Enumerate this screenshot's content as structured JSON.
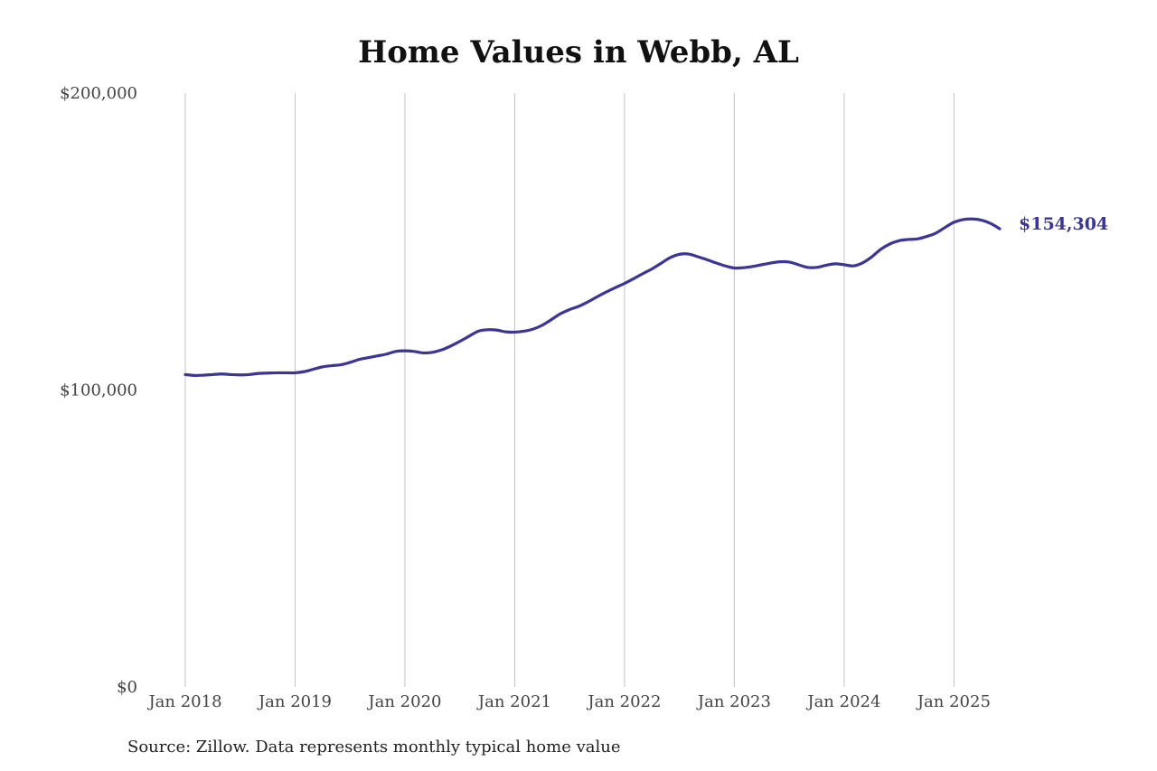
{
  "colors": {
    "line": "#3a3597",
    "grid": "#c2c2c2",
    "text": "#444444"
  },
  "chart_data": {
    "type": "line",
    "title": "Home Values in Webb, AL",
    "xlabel": "",
    "ylabel": "",
    "ylim": [
      0,
      200000
    ],
    "xlim": [
      "2018-01",
      "2025-06"
    ],
    "grid": {
      "vertical": true,
      "horizontal": false
    },
    "y_ticks": [
      {
        "value": 0,
        "label": "$0"
      },
      {
        "value": 100000,
        "label": "$100,000"
      },
      {
        "value": 200000,
        "label": "$200,000"
      }
    ],
    "x_ticks": [
      {
        "value": "2018-01",
        "label": "Jan 2018"
      },
      {
        "value": "2019-01",
        "label": "Jan 2019"
      },
      {
        "value": "2020-01",
        "label": "Jan 2020"
      },
      {
        "value": "2021-01",
        "label": "Jan 2021"
      },
      {
        "value": "2022-01",
        "label": "Jan 2022"
      },
      {
        "value": "2023-01",
        "label": "Jan 2023"
      },
      {
        "value": "2024-01",
        "label": "Jan 2024"
      },
      {
        "value": "2025-01",
        "label": "Jan 2025"
      }
    ],
    "series": [
      {
        "x": [
          "2018-01",
          "2018-02",
          "2018-03",
          "2018-04",
          "2018-05",
          "2018-06",
          "2018-07",
          "2018-08",
          "2018-09",
          "2018-10",
          "2018-11",
          "2018-12",
          "2019-01",
          "2019-02",
          "2019-03",
          "2019-04",
          "2019-05",
          "2019-06",
          "2019-07",
          "2019-08",
          "2019-09",
          "2019-10",
          "2019-11",
          "2019-12",
          "2020-01",
          "2020-02",
          "2020-03",
          "2020-04",
          "2020-05",
          "2020-06",
          "2020-07",
          "2020-08",
          "2020-09",
          "2020-10",
          "2020-11",
          "2020-12",
          "2021-01",
          "2021-02",
          "2021-03",
          "2021-04",
          "2021-05",
          "2021-06",
          "2021-07",
          "2021-08",
          "2021-09",
          "2021-10",
          "2021-11",
          "2021-12",
          "2022-01",
          "2022-02",
          "2022-03",
          "2022-04",
          "2022-05",
          "2022-06",
          "2022-07",
          "2022-08",
          "2022-09",
          "2022-10",
          "2022-11",
          "2022-12",
          "2023-01",
          "2023-02",
          "2023-03",
          "2023-04",
          "2023-05",
          "2023-06",
          "2023-07",
          "2023-08",
          "2023-09",
          "2023-10",
          "2023-11",
          "2023-12",
          "2024-01",
          "2024-02",
          "2024-03",
          "2024-04",
          "2024-05",
          "2024-06",
          "2024-07",
          "2024-08",
          "2024-09",
          "2024-10",
          "2024-11",
          "2024-12",
          "2025-01",
          "2025-02",
          "2025-03",
          "2025-04",
          "2025-05",
          "2025-06"
        ],
        "values": [
          105200,
          104900,
          105000,
          105200,
          105400,
          105200,
          105100,
          105200,
          105600,
          105700,
          105800,
          105800,
          105800,
          106200,
          107000,
          107800,
          108200,
          108500,
          109300,
          110300,
          110900,
          111500,
          112100,
          113000,
          113200,
          113000,
          112500,
          112700,
          113500,
          114800,
          116400,
          118100,
          119800,
          120300,
          120200,
          119600,
          119500,
          119800,
          120500,
          121800,
          123700,
          125700,
          127100,
          128200,
          129700,
          131400,
          133000,
          134500,
          135900,
          137500,
          139200,
          140800,
          142700,
          144600,
          145700,
          145800,
          144900,
          143900,
          142800,
          141800,
          141100,
          141200,
          141600,
          142200,
          142800,
          143200,
          143100,
          142200,
          141300,
          141300,
          142000,
          142500,
          142200,
          141800,
          142800,
          144800,
          147400,
          149200,
          150300,
          150700,
          150900,
          151700,
          152800,
          154700,
          156500,
          157400,
          157600,
          157200,
          156100,
          154304
        ],
        "end_label": "$154,304"
      }
    ],
    "source": "Source: Zillow. Data represents monthly typical home value"
  }
}
